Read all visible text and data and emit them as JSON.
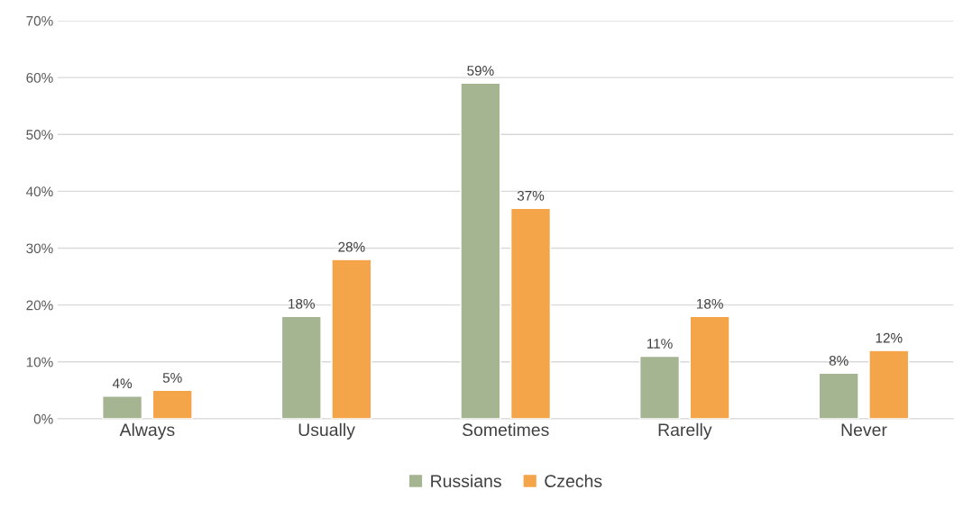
{
  "chart_data": {
    "type": "bar",
    "categories": [
      "Always",
      "Usually",
      "Sometimes",
      "Rarelly",
      "Never"
    ],
    "series": [
      {
        "name": "Russians",
        "color": "#a5b592",
        "values": [
          4,
          18,
          59,
          11,
          8
        ],
        "value_labels": [
          "4%",
          "18%",
          "59%",
          "11%",
          "8%"
        ]
      },
      {
        "name": "Czechs",
        "color": "#f4a54a",
        "values": [
          5,
          28,
          37,
          18,
          12
        ],
        "value_labels": [
          "5%",
          "28%",
          "37%",
          "18%",
          "12%"
        ]
      }
    ],
    "ylim": [
      0,
      70
    ],
    "yticks": [
      {
        "value": 0,
        "label": "0%"
      },
      {
        "value": 10,
        "label": "10%"
      },
      {
        "value": 20,
        "label": "20%"
      },
      {
        "value": 30,
        "label": "30%"
      },
      {
        "value": 40,
        "label": "40%"
      },
      {
        "value": 50,
        "label": "50%"
      },
      {
        "value": 60,
        "label": "60%"
      },
      {
        "value": 70,
        "label": "70%"
      }
    ],
    "grid": "y",
    "legend": "bottom"
  }
}
